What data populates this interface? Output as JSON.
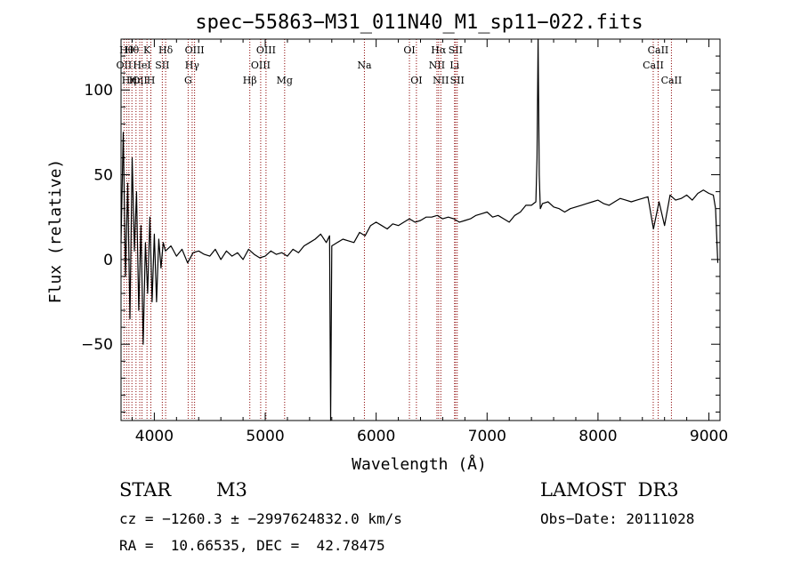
{
  "chart_data": {
    "type": "line",
    "title": "spec−55863−M31_011N40_M1_sp11−022.fits",
    "xlabel": "Wavelength (Å)",
    "ylabel": "Flux (relative)",
    "xlim": [
      3700,
      9100
    ],
    "ylim": [
      -95,
      130
    ],
    "xticks": [
      {
        "v": 4000,
        "label": "4000"
      },
      {
        "v": 5000,
        "label": "5000"
      },
      {
        "v": 6000,
        "label": "6000"
      },
      {
        "v": 7000,
        "label": "7000"
      },
      {
        "v": 8000,
        "label": "8000"
      },
      {
        "v": 9000,
        "label": "9000"
      }
    ],
    "yticks": [
      {
        "v": -50,
        "label": "−50"
      },
      {
        "v": 0,
        "label": "0"
      },
      {
        "v": 50,
        "label": "50"
      },
      {
        "v": 100,
        "label": "100"
      }
    ],
    "lines": [
      {
        "w": 3727,
        "label": "OII",
        "row": 1,
        "color": "#8b0000"
      },
      {
        "w": 3750,
        "label": "Hθ",
        "row": 0,
        "color": "#8b0000"
      },
      {
        "w": 3771,
        "label": "Hη",
        "row": 2,
        "color": "#8b0000"
      },
      {
        "w": 3798,
        "label": "Hθ",
        "row": 0,
        "color": "#8b0000"
      },
      {
        "w": 3835,
        "label": "Hη",
        "row": 2,
        "color": "#8b0000"
      },
      {
        "w": 3869,
        "label": "OII",
        "row": 2,
        "color": "#8b0000"
      },
      {
        "w": 3889,
        "label": "HeI",
        "row": 1,
        "color": "#8b0000"
      },
      {
        "w": 3934,
        "label": "K",
        "row": 0,
        "color": "#8b0000"
      },
      {
        "w": 3969,
        "label": "H",
        "row": 2,
        "color": "#8b0000"
      },
      {
        "w": 4072,
        "label": "SII",
        "row": 1,
        "color": "#8b0000"
      },
      {
        "w": 4102,
        "label": "Hδ",
        "row": 0,
        "color": "#8b0000"
      },
      {
        "w": 4305,
        "label": "G",
        "row": 2,
        "color": "#8b0000"
      },
      {
        "w": 4341,
        "label": "Hγ",
        "row": 1,
        "color": "#8b0000"
      },
      {
        "w": 4363,
        "label": "OIII",
        "row": 0,
        "color": "#8b0000"
      },
      {
        "w": 4861,
        "label": "Hβ",
        "row": 2,
        "color": "#8b0000"
      },
      {
        "w": 4959,
        "label": "OIII",
        "row": 1,
        "color": "#8b0000"
      },
      {
        "w": 5007,
        "label": "OIII",
        "row": 0,
        "color": "#8b0000"
      },
      {
        "w": 5175,
        "label": "Mg",
        "row": 2,
        "color": "#8b0000"
      },
      {
        "w": 5894,
        "label": "Na",
        "row": 1,
        "color": "#8b0000"
      },
      {
        "w": 6300,
        "label": "OI",
        "row": 0,
        "color": "#8b0000"
      },
      {
        "w": 6363,
        "label": "OI",
        "row": 2,
        "color": "#8b0000"
      },
      {
        "w": 6548,
        "label": "NII",
        "row": 1,
        "color": "#8b0000"
      },
      {
        "w": 6563,
        "label": "Hα",
        "row": 0,
        "color": "#8b0000"
      },
      {
        "w": 6583,
        "label": "NII",
        "row": 2,
        "color": "#8b0000"
      },
      {
        "w": 6707,
        "label": "Li",
        "row": 1,
        "color": "#8b0000"
      },
      {
        "w": 6716,
        "label": "SII",
        "row": 0,
        "color": "#8b0000"
      },
      {
        "w": 6731,
        "label": "SII",
        "row": 2,
        "color": "#8b0000"
      },
      {
        "w": 8498,
        "label": "CaII",
        "row": 1,
        "color": "#8b0000"
      },
      {
        "w": 8542,
        "label": "CaII",
        "row": 0,
        "color": "#8b0000"
      },
      {
        "w": 8662,
        "label": "CaII",
        "row": 2,
        "color": "#8b0000"
      }
    ],
    "series": [
      {
        "x": [
          3700,
          3720,
          3740,
          3760,
          3780,
          3800,
          3820,
          3840,
          3860,
          3880,
          3900,
          3920,
          3940,
          3960,
          3980,
          4000,
          4020,
          4040,
          4060,
          4080,
          4100,
          4150,
          4200,
          4250,
          4300,
          4350,
          4400,
          4450,
          4500,
          4550,
          4600,
          4650,
          4700,
          4750,
          4800,
          4850,
          4900,
          4950,
          5000,
          5050,
          5100,
          5150,
          5200,
          5250,
          5300,
          5350,
          5400,
          5450,
          5500,
          5550,
          5580,
          5590,
          5600,
          5650,
          5700,
          5750,
          5800,
          5850,
          5900,
          5950,
          6000,
          6050,
          6100,
          6150,
          6200,
          6250,
          6300,
          6350,
          6400,
          6450,
          6500,
          6550,
          6600,
          6650,
          6700,
          6750,
          6800,
          6850,
          6900,
          6950,
          7000,
          7050,
          7100,
          7150,
          7200,
          7250,
          7300,
          7350,
          7400,
          7440,
          7450,
          7460,
          7470,
          7480,
          7500,
          7550,
          7600,
          7650,
          7700,
          7750,
          7800,
          7850,
          7900,
          7950,
          8000,
          8050,
          8100,
          8150,
          8200,
          8250,
          8300,
          8350,
          8400,
          8450,
          8500,
          8550,
          8600,
          8650,
          8700,
          8750,
          8800,
          8850,
          8900,
          8950,
          9000,
          9040,
          9060,
          9080
        ],
        "y": [
          10,
          75,
          -10,
          45,
          -35,
          60,
          5,
          40,
          -30,
          20,
          -50,
          10,
          -20,
          25,
          -25,
          15,
          -25,
          12,
          -5,
          10,
          5,
          8,
          2,
          6,
          -2,
          4,
          5,
          3,
          2,
          6,
          0,
          5,
          2,
          4,
          0,
          6,
          3,
          1,
          2,
          5,
          3,
          4,
          2,
          6,
          4,
          8,
          10,
          12,
          15,
          10,
          14,
          -95,
          8,
          10,
          12,
          11,
          10,
          16,
          14,
          20,
          22,
          20,
          18,
          21,
          20,
          22,
          24,
          22,
          23,
          25,
          25,
          26,
          24,
          25,
          24,
          22,
          23,
          24,
          26,
          27,
          28,
          25,
          26,
          24,
          22,
          26,
          28,
          32,
          32,
          34,
          60,
          140,
          50,
          30,
          33,
          34,
          31,
          30,
          28,
          30,
          31,
          32,
          33,
          34,
          35,
          33,
          32,
          34,
          36,
          35,
          34,
          35,
          36,
          37,
          18,
          34,
          20,
          38,
          35,
          36,
          38,
          35,
          39,
          41,
          39,
          38,
          30,
          -2
        ]
      }
    ]
  },
  "info": {
    "object_class": "STAR",
    "subclass": "M3",
    "survey": "LAMOST  DR3",
    "cz": "cz = −1260.3 ± −2997624832.0 km/s",
    "obs_date": "Obs−Date: 20111028",
    "radec": "RA =  10.66535, DEC =  42.78475"
  }
}
